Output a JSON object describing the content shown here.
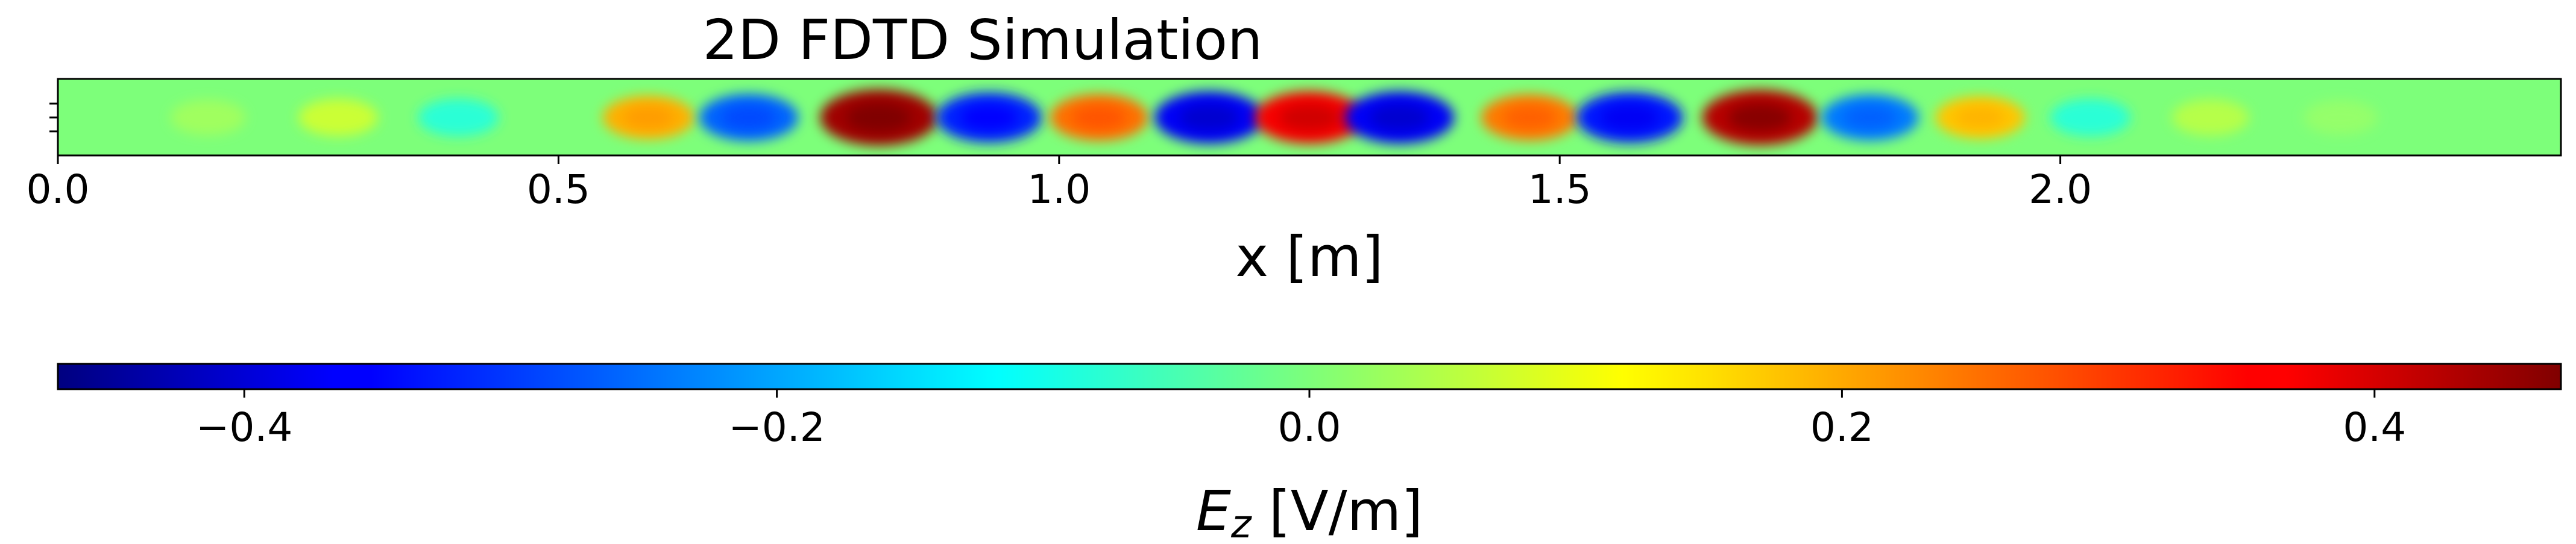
{
  "chart_data": [
    {
      "type": "heatmap",
      "title": "2D FDTD Simulation",
      "xlabel": "x [m]",
      "ylabel": "",
      "xlim": [
        0.0,
        2.5
      ],
      "xticks": [
        0.0,
        0.5,
        1.0,
        1.5,
        2.0
      ],
      "xtick_labels": [
        "0.0",
        "0.5",
        "1.0",
        "1.5",
        "2.0"
      ],
      "colormap": "jet",
      "value_range": [
        -0.47,
        0.47
      ],
      "field": "E_z",
      "field_profile": {
        "description_units": "x in m, E_z in V/m along the strip centre",
        "x": [
          0.15,
          0.28,
          0.4,
          0.59,
          0.69,
          0.82,
          0.93,
          1.04,
          1.15,
          1.25,
          1.34,
          1.47,
          1.57,
          1.7,
          1.81,
          1.92,
          2.03,
          2.15,
          2.28
        ],
        "values": [
          0.03,
          0.07,
          -0.08,
          0.19,
          -0.26,
          0.44,
          -0.32,
          0.25,
          -0.36,
          0.36,
          -0.36,
          0.24,
          -0.33,
          0.42,
          -0.24,
          0.17,
          -0.08,
          0.05,
          0.02
        ]
      }
    },
    {
      "type": "colorbar",
      "label_main": "E",
      "label_sub": "z",
      "label_units": " [V/m]",
      "range": [
        -0.47,
        0.47
      ],
      "ticks": [
        -0.4,
        -0.2,
        0.0,
        0.2,
        0.4
      ],
      "tick_labels": [
        "−0.4",
        "−0.2",
        "0.0",
        "0.2",
        "0.4"
      ],
      "colormap": "jet"
    }
  ]
}
